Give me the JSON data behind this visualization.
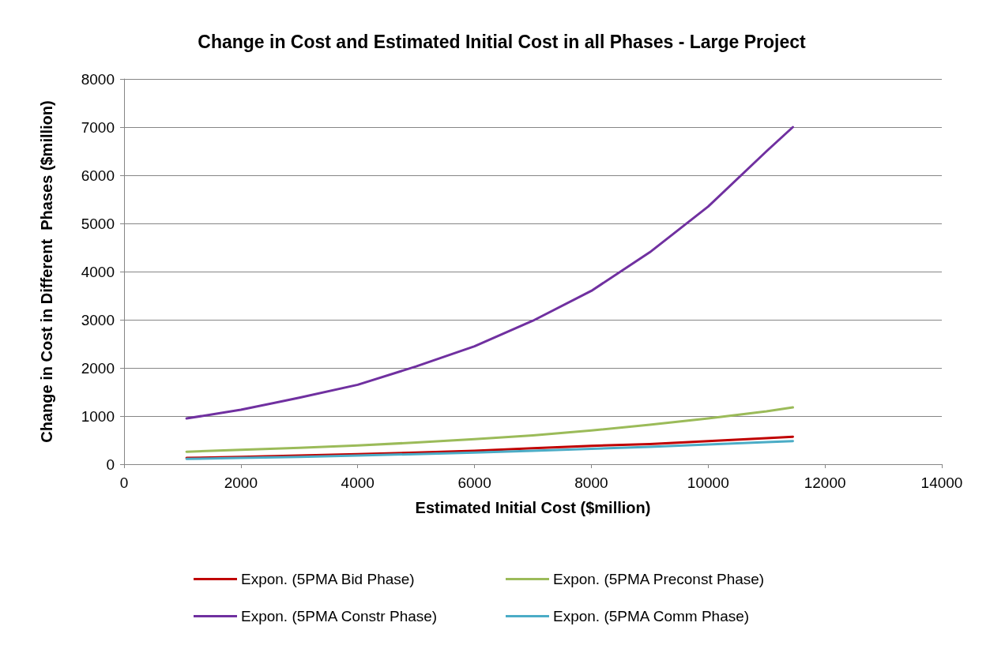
{
  "chart_data": {
    "type": "line",
    "title": "Change in Cost and Estimated Initial Cost in all Phases - Large Project",
    "xlabel": "Estimated Initial Cost ($million)",
    "ylabel": "Change in Cost in Different  Phases ($million)",
    "x": [
      1070,
      2000,
      3000,
      4000,
      5000,
      6000,
      7000,
      8000,
      9000,
      10000,
      11000,
      11450
    ],
    "series": [
      {
        "name": "Expon. (5PMA Bid Phase)",
        "color": "#c00000",
        "values": [
          130,
          150,
          180,
          210,
          240,
          280,
          330,
          380,
          420,
          480,
          540,
          570
        ]
      },
      {
        "name": "Expon. (5PMA Preconst Phase)",
        "color": "#9bbb59",
        "values": [
          260,
          300,
          340,
          390,
          450,
          520,
          600,
          700,
          820,
          950,
          1100,
          1180
        ]
      },
      {
        "name": "Expon. (5PMA Constr Phase)",
        "color": "#7030a0",
        "values": [
          950,
          1130,
          1380,
          1650,
          2030,
          2450,
          2980,
          3600,
          4400,
          5350,
          6500,
          7000
        ]
      },
      {
        "name": "Expon. (5PMA Comm Phase)",
        "color": "#4bacc6",
        "values": [
          110,
          130,
          150,
          180,
          210,
          240,
          280,
          320,
          360,
          410,
          460,
          480
        ]
      }
    ],
    "xlim": [
      0,
      14000
    ],
    "xticks": [
      0,
      2000,
      4000,
      6000,
      8000,
      10000,
      12000,
      14000
    ],
    "ylim": [
      0,
      8000
    ],
    "yticks": [
      0,
      1000,
      2000,
      3000,
      4000,
      5000,
      6000,
      7000,
      8000
    ],
    "grid": "y",
    "legend": "bottom",
    "marker": "none",
    "line_style": "solid"
  }
}
